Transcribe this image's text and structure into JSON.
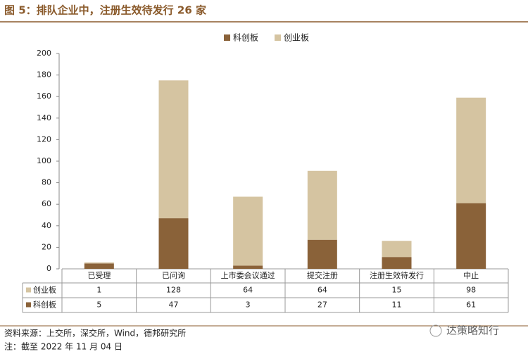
{
  "chart_data": {
    "type": "stacked-bar",
    "title": "图 5：排队企业中，注册生效待发行 26 家",
    "categories": [
      "已受理",
      "已问询",
      "上市委会议通过",
      "提交注册",
      "注册生效待发行",
      "中止"
    ],
    "series": [
      {
        "name": "科创板",
        "color": "#8a6239",
        "values": [
          5,
          47,
          3,
          27,
          11,
          61
        ]
      },
      {
        "name": "创业板",
        "color": "#d5c4a1",
        "values": [
          1,
          128,
          64,
          64,
          15,
          98
        ]
      }
    ],
    "ylim": [
      0,
      200
    ],
    "yticks": [
      0,
      20,
      40,
      60,
      80,
      100,
      120,
      140,
      160,
      180,
      200
    ]
  },
  "footer": {
    "source": "资料来源：上交所，深交所，Wind，德邦研究所",
    "note": "注：截至 2022 年 11 月 04 日",
    "watermark": "达策略知行"
  }
}
